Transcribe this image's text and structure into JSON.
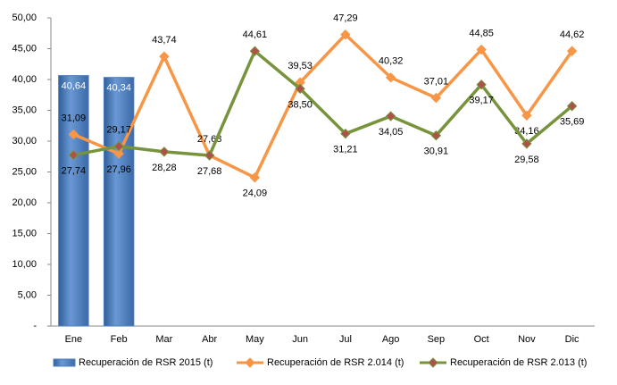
{
  "chart_data": {
    "type": "bar_line",
    "categories": [
      "Ene",
      "Feb",
      "Mar",
      "Abr",
      "May",
      "Jun",
      "Jul",
      "Ago",
      "Sep",
      "Oct",
      "Nov",
      "Dic"
    ],
    "series": [
      {
        "name": "Recuperación de RSR 2015 (t)",
        "type": "bar",
        "color": "#4f81bd",
        "values": [
          40.64,
          40.34,
          null,
          null,
          null,
          null,
          null,
          null,
          null,
          null,
          null,
          null
        ],
        "value_labels": [
          "40,64",
          "40,34",
          null,
          null,
          null,
          null,
          null,
          null,
          null,
          null,
          null,
          null
        ]
      },
      {
        "name": "Recuperación de RSR 2.014 (t)",
        "type": "line",
        "color": "#f79646",
        "marker_color": "#f79646",
        "values": [
          31.09,
          27.96,
          43.74,
          27.68,
          24.09,
          39.53,
          47.29,
          40.32,
          37.01,
          44.85,
          34.16,
          44.62
        ],
        "value_labels": [
          "31,09",
          "27,96",
          "43,74",
          "27,68",
          "24,09",
          "39,53",
          "47,29",
          "40,32",
          "37,01",
          "44,85",
          "34,16",
          "44,62"
        ]
      },
      {
        "name": "Recuperación de RSR 2.013 (t)",
        "type": "line",
        "color": "#77933c",
        "marker_color": "#b0504a",
        "values": [
          27.74,
          29.17,
          28.28,
          27.68,
          44.61,
          38.5,
          31.21,
          34.05,
          30.91,
          39.17,
          29.58,
          35.69
        ],
        "value_labels": [
          "27,74",
          "29,17",
          "28,28",
          "27,68",
          "44,61",
          "38,50",
          "31,21",
          "34,05",
          "30,91",
          "39,17",
          "29,58",
          "35,69"
        ]
      }
    ],
    "ylim": [
      0,
      50
    ],
    "yticks": [
      {
        "value": 0,
        "label": "-"
      },
      {
        "value": 5,
        "label": "5,00"
      },
      {
        "value": 10,
        "label": "10,00"
      },
      {
        "value": 15,
        "label": "15,00"
      },
      {
        "value": 20,
        "label": "20,00"
      },
      {
        "value": 25,
        "label": "25,00"
      },
      {
        "value": 30,
        "label": "30,00"
      },
      {
        "value": 35,
        "label": "35,00"
      },
      {
        "value": 40,
        "label": "40,00"
      },
      {
        "value": 45,
        "label": "45,00"
      },
      {
        "value": 50,
        "label": "50,00"
      }
    ],
    "grid": false,
    "legend": "bottom"
  }
}
